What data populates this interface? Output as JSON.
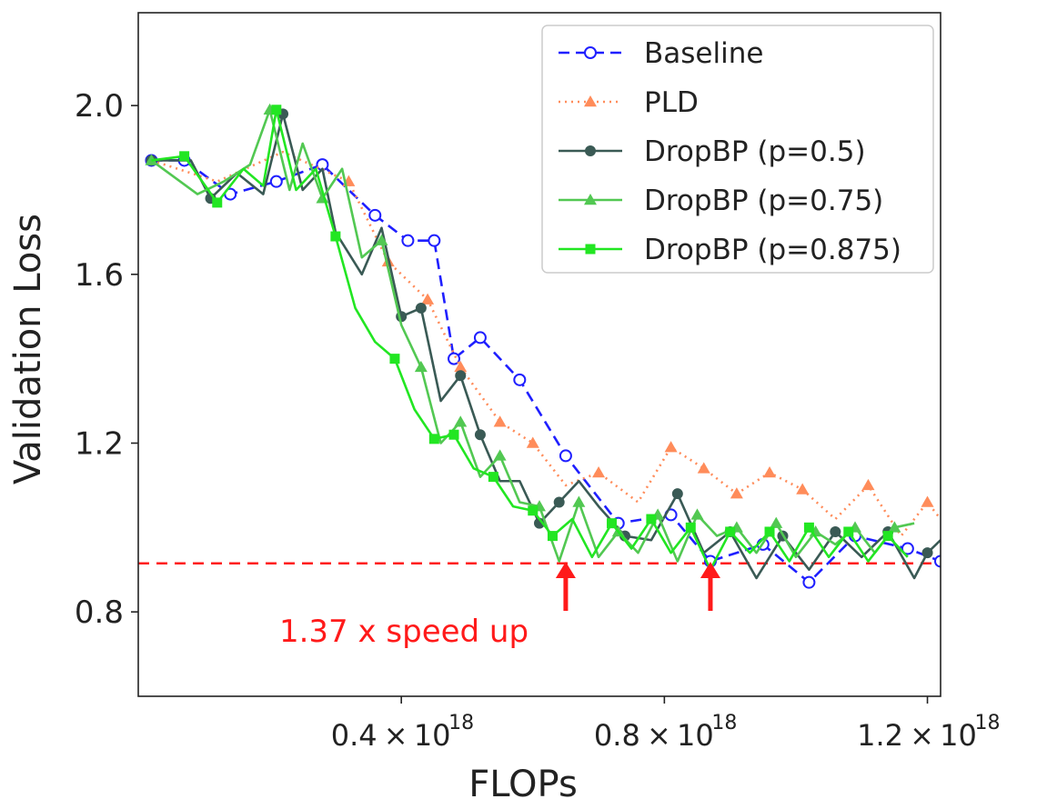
{
  "chart_data": {
    "type": "line",
    "xlabel": "FLOPs",
    "ylabel": "Validation Loss",
    "xlim": [
      0.0,
      1.22
    ],
    "ylim": [
      0.6,
      2.22
    ],
    "x_ticks": [
      {
        "value": 0.4,
        "mantissa": "0.4",
        "times": "×",
        "base": "10",
        "exponent": "18"
      },
      {
        "value": 0.8,
        "mantissa": "0.8",
        "times": "×",
        "base": "10",
        "exponent": "18"
      },
      {
        "value": 1.2,
        "mantissa": "1.2",
        "times": "×",
        "base": "10",
        "exponent": "18"
      }
    ],
    "y_ticks": [
      {
        "value": 0.8,
        "label": "0.8"
      },
      {
        "value": 1.2,
        "label": "1.2"
      },
      {
        "value": 1.6,
        "label": "1.6"
      },
      {
        "value": 2.0,
        "label": "2.0"
      }
    ],
    "legend_position": "top-right",
    "reference_line": {
      "y": 0.915,
      "color": "#ff1a1a",
      "style": "dashed"
    },
    "annotation": {
      "text": "1.37 x speed up",
      "color": "#ff1a1a",
      "arrows_at_x": [
        0.65,
        0.87
      ]
    },
    "series": [
      {
        "name": "Baseline",
        "color": "#1f1fff",
        "dash": "12,7",
        "marker": "circle-open",
        "x": [
          0.02,
          0.07,
          0.14,
          0.21,
          0.28,
          0.36,
          0.41,
          0.45,
          0.48,
          0.52,
          0.58,
          0.65,
          0.73,
          0.81,
          0.87,
          0.95,
          1.02,
          1.09,
          1.17,
          1.22
        ],
        "y": [
          1.87,
          1.87,
          1.79,
          1.82,
          1.86,
          1.74,
          1.68,
          1.68,
          1.4,
          1.45,
          1.35,
          1.17,
          1.01,
          1.03,
          0.92,
          0.96,
          0.87,
          0.98,
          0.95,
          0.92
        ]
      },
      {
        "name": "PLD",
        "color": "#ff8c5a",
        "dash": "2,5",
        "marker": "triangle",
        "x": [
          0.02,
          0.12,
          0.22,
          0.32,
          0.38,
          0.44,
          0.49,
          0.55,
          0.6,
          0.65,
          0.7,
          0.76,
          0.81,
          0.86,
          0.91,
          0.96,
          1.01,
          1.06,
          1.11,
          1.16,
          1.2,
          1.22
        ],
        "y": [
          1.87,
          1.82,
          1.89,
          1.82,
          1.63,
          1.54,
          1.38,
          1.25,
          1.2,
          1.1,
          1.13,
          1.06,
          1.19,
          1.14,
          1.08,
          1.13,
          1.09,
          1.02,
          1.1,
          0.98,
          1.06,
          1.02
        ],
        "markers_at": [
          3,
          4,
          5,
          6,
          7,
          8,
          10,
          12,
          13,
          14,
          15,
          16,
          18,
          20
        ]
      },
      {
        "name": "DropBP (p=0.5)",
        "color": "#3a5a55",
        "dash": "",
        "marker": "circle-filled",
        "x": [
          0.02,
          0.08,
          0.11,
          0.15,
          0.19,
          0.22,
          0.25,
          0.28,
          0.3,
          0.34,
          0.37,
          0.4,
          0.43,
          0.46,
          0.49,
          0.52,
          0.55,
          0.58,
          0.61,
          0.64,
          0.67,
          0.7,
          0.74,
          0.78,
          0.82,
          0.86,
          0.9,
          0.94,
          0.98,
          1.02,
          1.06,
          1.1,
          1.14,
          1.18,
          1.2,
          1.22
        ],
        "y": [
          1.87,
          1.87,
          1.78,
          1.84,
          1.79,
          1.98,
          1.8,
          1.85,
          1.7,
          1.6,
          1.71,
          1.5,
          1.52,
          1.3,
          1.36,
          1.22,
          1.11,
          1.11,
          1.01,
          1.06,
          1.11,
          1.05,
          0.98,
          0.97,
          1.08,
          0.94,
          0.99,
          0.88,
          0.98,
          0.9,
          0.99,
          0.93,
          0.99,
          0.88,
          0.94,
          0.97
        ],
        "markers_at": [
          0,
          2,
          5,
          11,
          12,
          14,
          15,
          18,
          19,
          22,
          24,
          26,
          28,
          30,
          32,
          34
        ]
      },
      {
        "name": "DropBP (p=0.75)",
        "color": "#52c852",
        "dash": "",
        "marker": "triangle",
        "x": [
          0.02,
          0.09,
          0.13,
          0.17,
          0.2,
          0.23,
          0.25,
          0.28,
          0.31,
          0.34,
          0.37,
          0.4,
          0.43,
          0.46,
          0.49,
          0.52,
          0.55,
          0.58,
          0.61,
          0.64,
          0.67,
          0.7,
          0.73,
          0.76,
          0.79,
          0.82,
          0.85,
          0.88,
          0.91,
          0.94,
          0.97,
          1.0,
          1.03,
          1.06,
          1.09,
          1.12,
          1.15,
          1.18
        ],
        "y": [
          1.87,
          1.79,
          1.82,
          1.86,
          1.99,
          1.8,
          1.91,
          1.78,
          1.85,
          1.64,
          1.68,
          1.48,
          1.38,
          1.2,
          1.25,
          1.12,
          1.17,
          1.06,
          1.05,
          0.92,
          1.06,
          0.93,
          0.99,
          0.94,
          1.03,
          0.92,
          1.03,
          0.98,
          1.0,
          0.94,
          1.01,
          0.93,
          0.99,
          0.96,
          1.0,
          0.94,
          1.0,
          1.01
        ],
        "markers_at": [
          0,
          4,
          7,
          10,
          12,
          14,
          16,
          18,
          20,
          22,
          24,
          26,
          28,
          30,
          32,
          34,
          36
        ]
      },
      {
        "name": "DropBP (p=0.875)",
        "color": "#22e622",
        "dash": "",
        "marker": "square",
        "x": [
          0.02,
          0.07,
          0.12,
          0.16,
          0.19,
          0.21,
          0.24,
          0.27,
          0.3,
          0.33,
          0.36,
          0.39,
          0.42,
          0.45,
          0.48,
          0.51,
          0.54,
          0.57,
          0.6,
          0.63,
          0.66,
          0.69,
          0.72,
          0.75,
          0.78,
          0.81,
          0.84,
          0.87,
          0.9,
          0.93,
          0.96,
          0.99,
          1.02,
          1.05,
          1.08,
          1.11,
          1.14,
          1.17
        ],
        "y": [
          1.87,
          1.88,
          1.77,
          1.85,
          1.81,
          1.99,
          1.8,
          1.85,
          1.69,
          1.52,
          1.44,
          1.4,
          1.28,
          1.21,
          1.22,
          1.14,
          1.12,
          1.05,
          1.04,
          0.98,
          1.02,
          0.93,
          1.01,
          0.95,
          1.02,
          0.94,
          1.0,
          0.9,
          0.99,
          0.94,
          0.99,
          0.92,
          1.0,
          0.93,
          0.99,
          0.92,
          0.98,
          0.93
        ],
        "markers_at": [
          1,
          2,
          5,
          8,
          11,
          13,
          14,
          16,
          18,
          19,
          22,
          24,
          26,
          28,
          30,
          32,
          34,
          36
        ]
      }
    ]
  }
}
